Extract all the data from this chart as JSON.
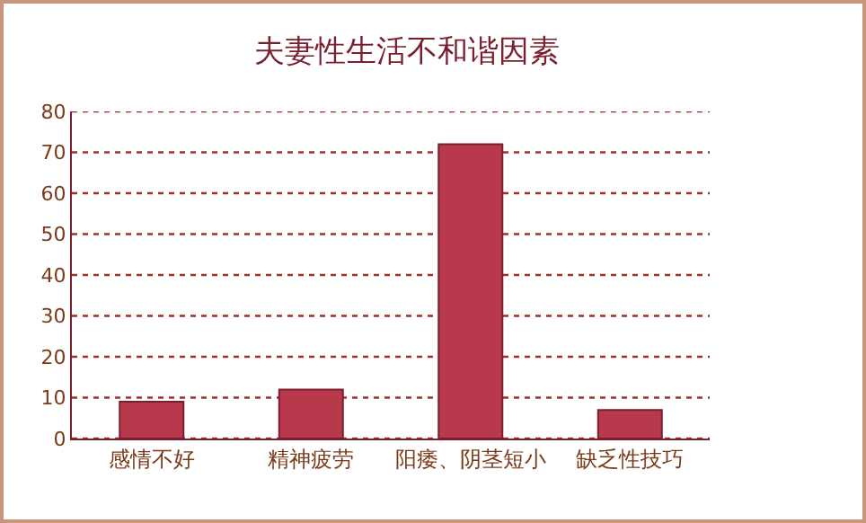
{
  "chart_data": {
    "type": "bar",
    "title": "夫妻性生活不和谐因素",
    "categories": [
      "感情不好",
      "精神疲劳",
      "阳痿、阴茎短小",
      "缺乏性技巧"
    ],
    "values": [
      9,
      12,
      72,
      7
    ],
    "color": "#b8394c",
    "ylim": [
      0,
      80
    ],
    "yticks": [
      0,
      10,
      20,
      30,
      40,
      50,
      60,
      70,
      80
    ],
    "grid": "y"
  }
}
